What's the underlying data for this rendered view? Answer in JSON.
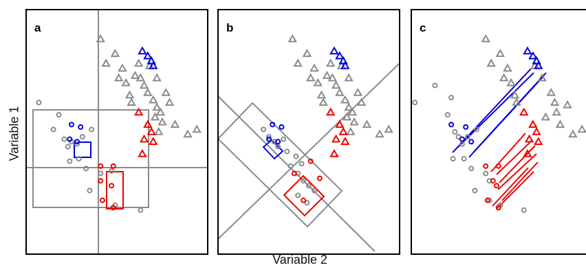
{
  "figure": {
    "ylabel": "Variable 1",
    "xlabel": "Variable 2"
  },
  "colors": {
    "gray": "#8a8a8a",
    "blue": "#0000dd",
    "red": "#ee0000",
    "frame": "#000000"
  },
  "chart_data": [
    {
      "type": "scatter",
      "panel_label": "a",
      "xlabel": "Variable 2",
      "ylabel": "Variable 1",
      "xlim": [
        0,
        1
      ],
      "ylim": [
        0,
        1
      ],
      "grid": false,
      "series": [
        {
          "marker": "circle",
          "color": "gray",
          "points": [
            [
              0.07,
              0.62
            ],
            [
              0.15,
              0.51
            ],
            [
              0.18,
              0.57
            ],
            [
              0.21,
              0.47
            ],
            [
              0.23,
              0.44
            ],
            [
              0.25,
              0.46
            ],
            [
              0.28,
              0.45
            ],
            [
              0.31,
              0.48
            ],
            [
              0.36,
              0.51
            ],
            [
              0.24,
              0.38
            ],
            [
              0.29,
              0.39
            ],
            [
              0.33,
              0.35
            ],
            [
              0.41,
              0.33
            ],
            [
              0.47,
              0.34
            ],
            [
              0.35,
              0.26
            ],
            [
              0.42,
              0.22
            ],
            [
              0.49,
              0.2
            ],
            [
              0.63,
              0.18
            ]
          ]
        },
        {
          "marker": "circle",
          "color": "blue",
          "points": [
            [
              0.25,
              0.53
            ],
            [
              0.3,
              0.52
            ],
            [
              0.24,
              0.47
            ],
            [
              0.28,
              0.46
            ]
          ]
        },
        {
          "marker": "circle",
          "color": "red",
          "points": [
            [
              0.41,
              0.36
            ],
            [
              0.48,
              0.36
            ],
            [
              0.41,
              0.3
            ],
            [
              0.47,
              0.28
            ],
            [
              0.42,
              0.22
            ],
            [
              0.48,
              0.19
            ]
          ]
        },
        {
          "marker": "triangle",
          "color": "gray",
          "points": [
            [
              0.41,
              0.88
            ],
            [
              0.49,
              0.82
            ],
            [
              0.44,
              0.78
            ],
            [
              0.53,
              0.76
            ],
            [
              0.51,
              0.72
            ],
            [
              0.55,
              0.7
            ],
            [
              0.57,
              0.65
            ],
            [
              0.6,
              0.73
            ],
            [
              0.63,
              0.72
            ],
            [
              0.65,
              0.69
            ],
            [
              0.67,
              0.66
            ],
            [
              0.7,
              0.63
            ],
            [
              0.72,
              0.6
            ],
            [
              0.74,
              0.58
            ],
            [
              0.71,
              0.56
            ],
            [
              0.75,
              0.54
            ],
            [
              0.82,
              0.53
            ],
            [
              0.89,
              0.49
            ],
            [
              0.94,
              0.51
            ],
            [
              0.68,
              0.77
            ],
            [
              0.72,
              0.72
            ],
            [
              0.77,
              0.66
            ],
            [
              0.79,
              0.62
            ],
            [
              0.62,
              0.78
            ],
            [
              0.58,
              0.62
            ],
            [
              0.73,
              0.5
            ]
          ]
        },
        {
          "marker": "triangle",
          "color": "blue",
          "points": [
            [
              0.64,
              0.83
            ],
            [
              0.67,
              0.81
            ],
            [
              0.69,
              0.79
            ],
            [
              0.7,
              0.77
            ]
          ]
        },
        {
          "marker": "triangle",
          "color": "red",
          "points": [
            [
              0.62,
              0.58
            ],
            [
              0.67,
              0.53
            ],
            [
              0.69,
              0.5
            ],
            [
              0.65,
              0.47
            ],
            [
              0.7,
              0.46
            ],
            [
              0.64,
              0.41
            ]
          ]
        }
      ]
    },
    {
      "type": "scatter",
      "panel_label": "b",
      "xlabel": "Variable 2",
      "ylabel": "Variable 1",
      "xlim": [
        0,
        1
      ],
      "ylim": [
        0,
        1
      ],
      "grid": false,
      "series": [
        {
          "marker": "circle",
          "color": "gray",
          "points": [
            [
              0.25,
              0.51
            ],
            [
              0.28,
              0.48
            ],
            [
              0.31,
              0.46
            ],
            [
              0.33,
              0.44
            ],
            [
              0.36,
              0.47
            ],
            [
              0.38,
              0.42
            ],
            [
              0.43,
              0.4
            ],
            [
              0.46,
              0.37
            ],
            [
              0.4,
              0.36
            ],
            [
              0.44,
              0.33
            ],
            [
              0.47,
              0.3
            ],
            [
              0.5,
              0.28
            ],
            [
              0.53,
              0.26
            ],
            [
              0.44,
              0.24
            ],
            [
              0.49,
              0.21
            ]
          ]
        },
        {
          "marker": "circle",
          "color": "blue",
          "points": [
            [
              0.3,
              0.53
            ],
            [
              0.35,
              0.52
            ],
            [
              0.28,
              0.47
            ],
            [
              0.33,
              0.46
            ]
          ]
        },
        {
          "marker": "circle",
          "color": "red",
          "points": [
            [
              0.42,
              0.33
            ],
            [
              0.51,
              0.38
            ],
            [
              0.56,
              0.31
            ],
            [
              0.47,
              0.22
            ]
          ]
        },
        {
          "marker": "triangle",
          "color": "gray",
          "points": [
            [
              0.41,
              0.88
            ],
            [
              0.49,
              0.82
            ],
            [
              0.44,
              0.78
            ],
            [
              0.53,
              0.76
            ],
            [
              0.51,
              0.72
            ],
            [
              0.55,
              0.7
            ],
            [
              0.57,
              0.65
            ],
            [
              0.6,
              0.73
            ],
            [
              0.63,
              0.72
            ],
            [
              0.65,
              0.69
            ],
            [
              0.67,
              0.66
            ],
            [
              0.7,
              0.63
            ],
            [
              0.72,
              0.6
            ],
            [
              0.74,
              0.58
            ],
            [
              0.71,
              0.56
            ],
            [
              0.75,
              0.54
            ],
            [
              0.82,
              0.53
            ],
            [
              0.89,
              0.49
            ],
            [
              0.94,
              0.51
            ],
            [
              0.68,
              0.77
            ],
            [
              0.72,
              0.72
            ],
            [
              0.77,
              0.66
            ],
            [
              0.79,
              0.62
            ],
            [
              0.62,
              0.78
            ],
            [
              0.58,
              0.62
            ],
            [
              0.73,
              0.5
            ]
          ]
        },
        {
          "marker": "triangle",
          "color": "blue",
          "points": [
            [
              0.64,
              0.83
            ],
            [
              0.67,
              0.81
            ],
            [
              0.69,
              0.79
            ],
            [
              0.7,
              0.77
            ]
          ]
        },
        {
          "marker": "triangle",
          "color": "red",
          "points": [
            [
              0.62,
              0.58
            ],
            [
              0.67,
              0.53
            ],
            [
              0.69,
              0.5
            ],
            [
              0.65,
              0.47
            ],
            [
              0.7,
              0.46
            ],
            [
              0.64,
              0.41
            ]
          ]
        }
      ]
    },
    {
      "type": "scatter",
      "panel_label": "c",
      "xlabel": "Variable 2",
      "ylabel": "Variable 1",
      "xlim": [
        0,
        1
      ],
      "ylim": [
        0,
        1
      ],
      "grid": false,
      "series": [
        {
          "marker": "circle",
          "color": "gray",
          "points": [
            [
              0.02,
              0.62
            ],
            [
              0.13,
              0.69
            ],
            [
              0.22,
              0.64
            ],
            [
              0.2,
              0.57
            ],
            [
              0.24,
              0.5
            ],
            [
              0.26,
              0.48
            ],
            [
              0.28,
              0.45
            ],
            [
              0.31,
              0.48
            ],
            [
              0.36,
              0.51
            ],
            [
              0.23,
              0.39
            ],
            [
              0.29,
              0.39
            ],
            [
              0.33,
              0.35
            ],
            [
              0.41,
              0.33
            ],
            [
              0.43,
              0.3
            ],
            [
              0.35,
              0.26
            ],
            [
              0.43,
              0.22
            ],
            [
              0.49,
              0.2
            ],
            [
              0.62,
              0.18
            ]
          ]
        },
        {
          "marker": "circle",
          "color": "blue",
          "points": [
            [
              0.22,
              0.53
            ],
            [
              0.3,
              0.52
            ],
            [
              0.28,
              0.47
            ],
            [
              0.33,
              0.46
            ]
          ]
        },
        {
          "marker": "circle",
          "color": "red",
          "points": [
            [
              0.41,
              0.36
            ],
            [
              0.48,
              0.36
            ],
            [
              0.45,
              0.3
            ],
            [
              0.47,
              0.28
            ],
            [
              0.42,
              0.22
            ],
            [
              0.48,
              0.19
            ]
          ]
        },
        {
          "marker": "triangle",
          "color": "gray",
          "points": [
            [
              0.41,
              0.88
            ],
            [
              0.49,
              0.82
            ],
            [
              0.44,
              0.78
            ],
            [
              0.53,
              0.76
            ],
            [
              0.51,
              0.72
            ],
            [
              0.55,
              0.7
            ],
            [
              0.57,
              0.65
            ],
            [
              0.68,
              0.77
            ],
            [
              0.72,
              0.72
            ],
            [
              0.77,
              0.66
            ],
            [
              0.79,
              0.62
            ],
            [
              0.8,
              0.58
            ],
            [
              0.74,
              0.56
            ],
            [
              0.82,
              0.53
            ],
            [
              0.89,
              0.49
            ],
            [
              0.94,
              0.51
            ],
            [
              0.58,
              0.62
            ],
            [
              0.86,
              0.61
            ]
          ]
        },
        {
          "marker": "triangle",
          "color": "blue",
          "points": [
            [
              0.64,
              0.83
            ],
            [
              0.67,
              0.81
            ],
            [
              0.69,
              0.79
            ],
            [
              0.7,
              0.77
            ]
          ]
        },
        {
          "marker": "triangle",
          "color": "red",
          "points": [
            [
              0.62,
              0.58
            ],
            [
              0.67,
              0.53
            ],
            [
              0.69,
              0.5
            ],
            [
              0.65,
              0.47
            ],
            [
              0.7,
              0.46
            ],
            [
              0.64,
              0.41
            ]
          ]
        }
      ]
    }
  ]
}
